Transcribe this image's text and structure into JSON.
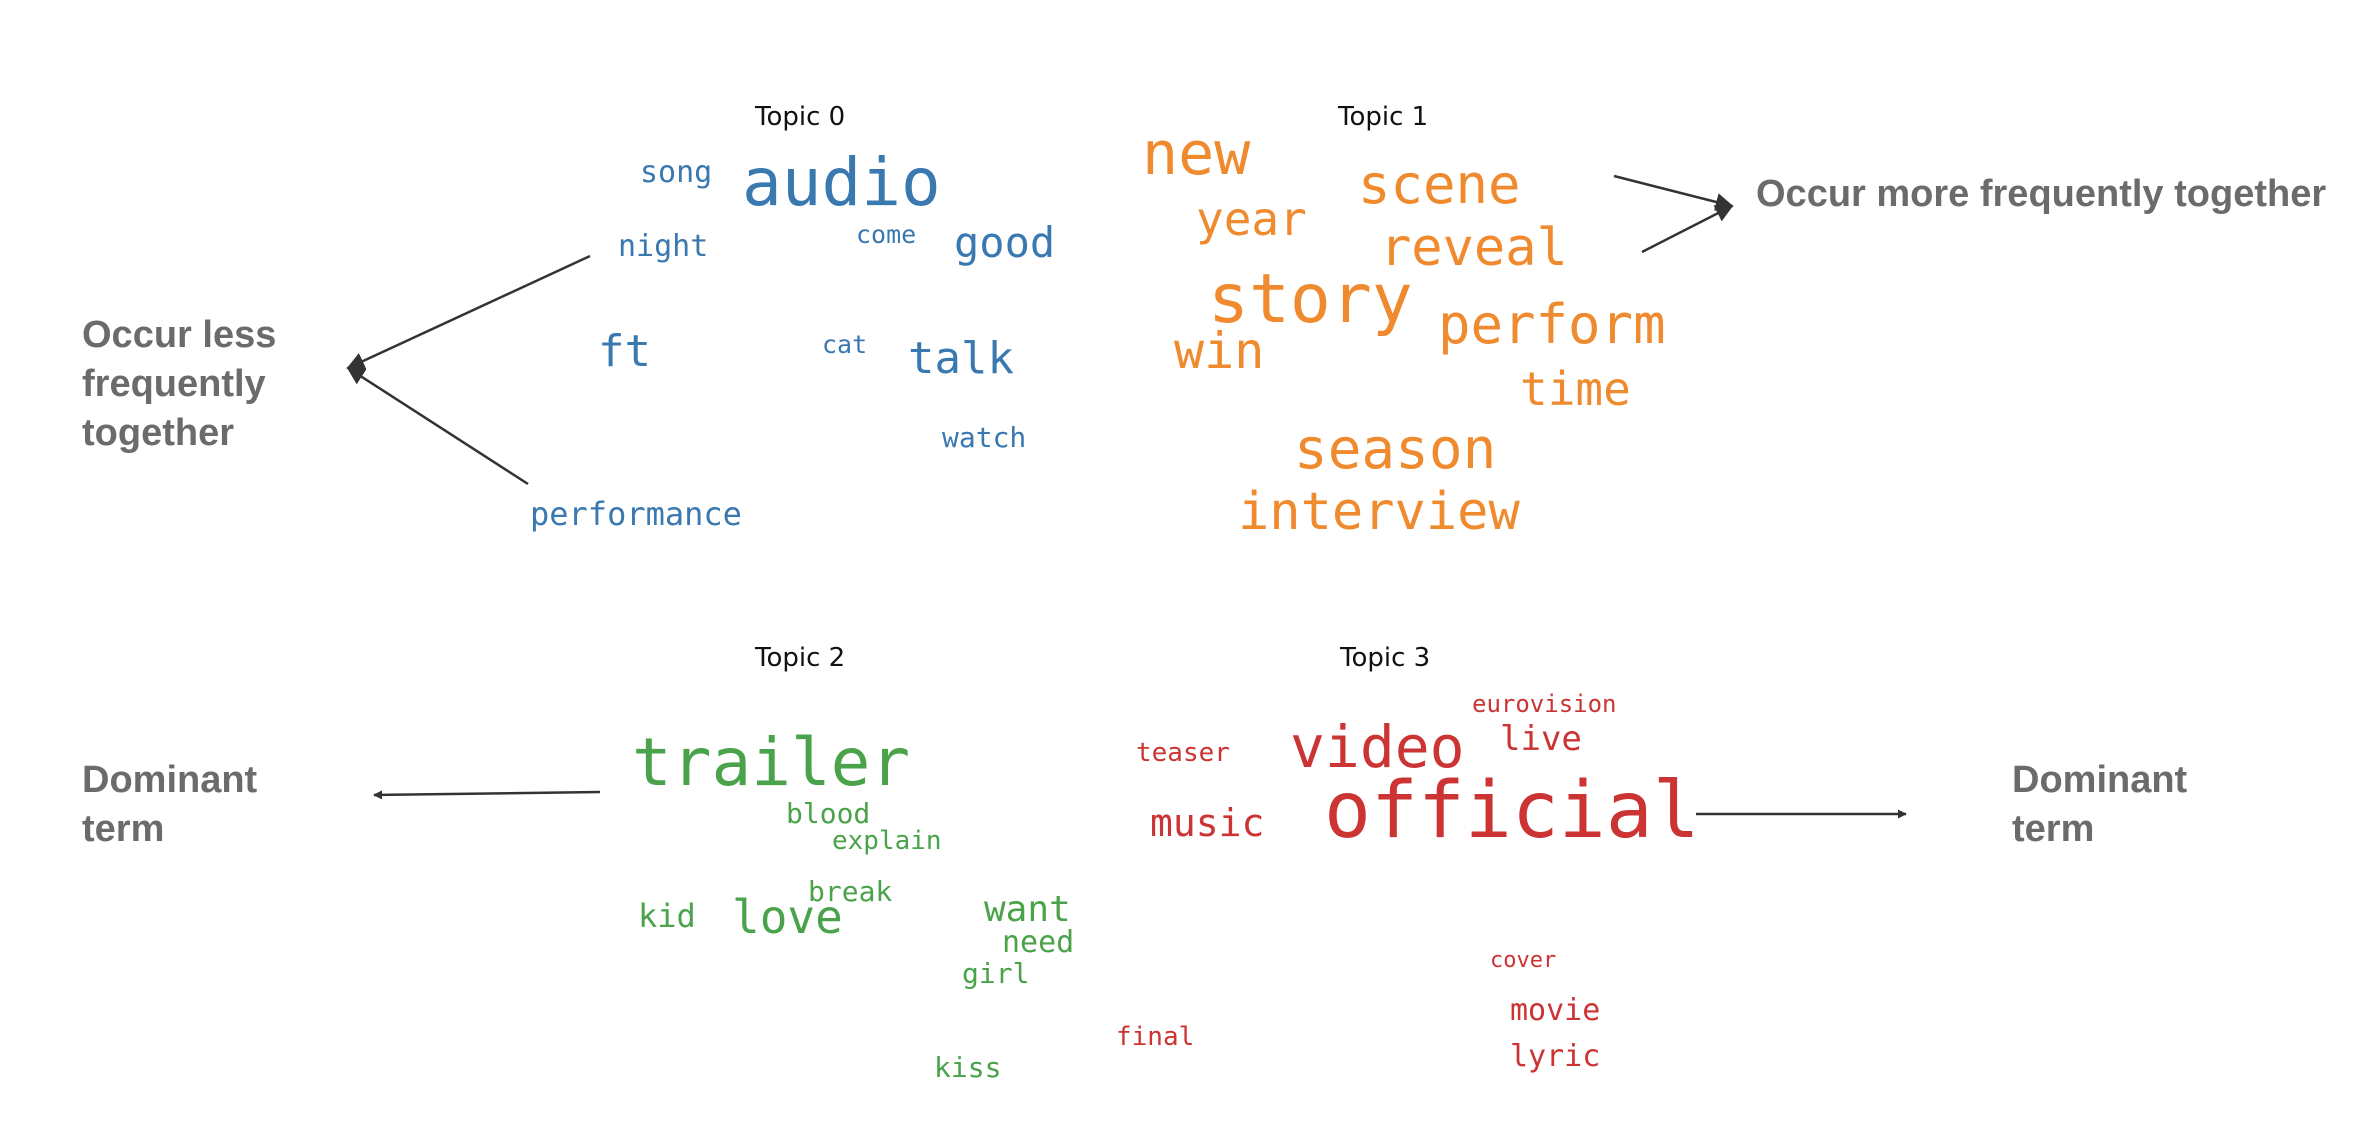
{
  "topics": [
    {
      "title": "Topic 0",
      "color": "#3a78b0",
      "words": [
        "song",
        "audio",
        "night",
        "come",
        "good",
        "ft",
        "cat",
        "talk",
        "watch",
        "performance"
      ]
    },
    {
      "title": "Topic 1",
      "color": "#ef8a2e",
      "words": [
        "new",
        "scene",
        "year",
        "reveal",
        "story",
        "perform",
        "win",
        "time",
        "season",
        "interview"
      ]
    },
    {
      "title": "Topic 2",
      "color": "#4aa34a",
      "words": [
        "trailer",
        "blood",
        "explain",
        "break",
        "kid",
        "love",
        "want",
        "need",
        "girl",
        "kiss"
      ]
    },
    {
      "title": "Topic 3",
      "color": "#cc3333",
      "words": [
        "eurovision",
        "teaser",
        "video",
        "live",
        "music",
        "official",
        "cover",
        "movie",
        "final",
        "lyric"
      ]
    }
  ],
  "annotations": {
    "more_frequent": [
      "Occur more frequently together"
    ],
    "less_frequent": [
      "Occur less",
      "frequently",
      "together"
    ],
    "dominant_left": [
      "Dominant",
      "term"
    ],
    "dominant_right": [
      "Dominant",
      "term"
    ]
  },
  "colors": {
    "annotation_text": "#6b6b6b",
    "arrow": "#333333"
  }
}
